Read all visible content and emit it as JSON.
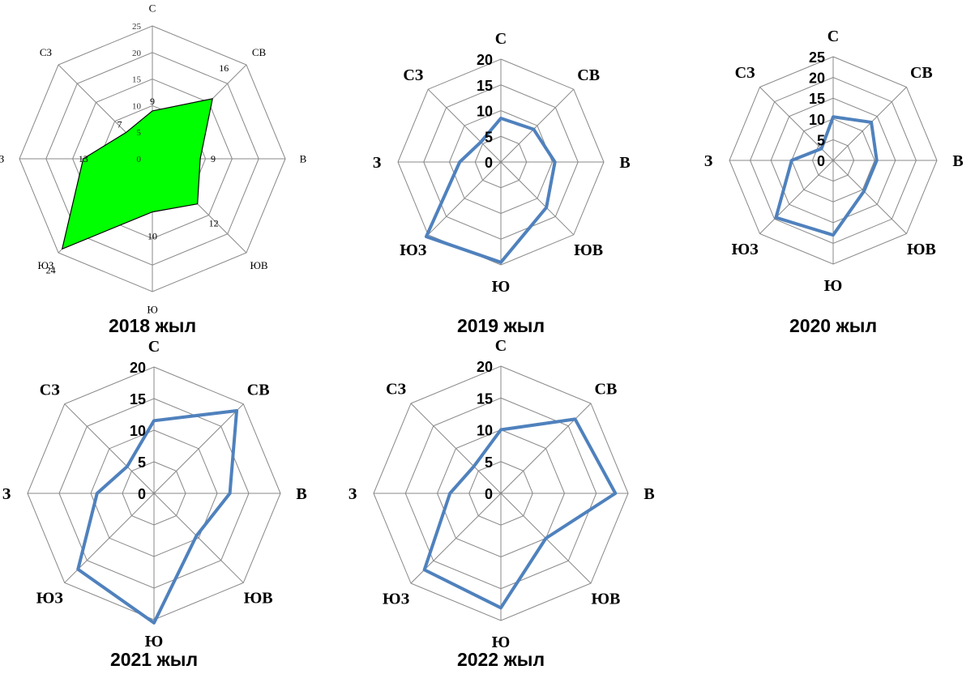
{
  "chart_data": [
    {
      "type": "radar",
      "caption": "2018 жыл",
      "directions": [
        "С",
        "СВ",
        "В",
        "ЮВ",
        "Ю",
        "ЮЗ",
        "З",
        "СЗ"
      ],
      "ticks": [
        "0",
        "5",
        "10",
        "15",
        "20",
        "25"
      ],
      "rmax": 25,
      "values": [
        9,
        16,
        9,
        12,
        10,
        24,
        13,
        7
      ],
      "value_labels": [
        "9",
        "16",
        "9",
        "12",
        "10",
        "24",
        "13",
        "7"
      ],
      "fill": "#00ff00",
      "stroke": "#000000"
    },
    {
      "type": "radar",
      "caption": "2019 жыл",
      "directions": [
        "С",
        "СВ",
        "В",
        "ЮВ",
        "Ю",
        "ЮЗ",
        "З",
        "СЗ"
      ],
      "ticks": [
        "0",
        "5",
        "10",
        "15",
        "20"
      ],
      "rmax": 20,
      "values": [
        8.5,
        9,
        10.5,
        12.5,
        19.5,
        20.5,
        8,
        5.5
      ],
      "stroke": "#4f81bd"
    },
    {
      "type": "radar",
      "caption": "2020 жыл",
      "directions": [
        "С",
        "СВ",
        "В",
        "ЮВ",
        "Ю",
        "ЮЗ",
        "З",
        "СЗ"
      ],
      "ticks": [
        "0",
        "5",
        "10",
        "15",
        "20",
        "25"
      ],
      "rmax": 25,
      "values": [
        10.5,
        13,
        10.5,
        10.5,
        18,
        19.5,
        10,
        4
      ],
      "stroke": "#4f81bd"
    },
    {
      "type": "radar",
      "caption": "2021 жыл",
      "directions": [
        "С",
        "СВ",
        "В",
        "ЮВ",
        "Ю",
        "ЮЗ",
        "З",
        "СЗ"
      ],
      "ticks": [
        "0",
        "5",
        "10",
        "15",
        "20"
      ],
      "rmax": 20,
      "values": [
        11.5,
        18.5,
        12,
        9.5,
        20.5,
        17,
        9,
        6
      ],
      "stroke": "#4f81bd"
    },
    {
      "type": "radar",
      "caption": "2022 жыл",
      "directions": [
        "С",
        "СВ",
        "В",
        "ЮВ",
        "Ю",
        "ЮЗ",
        "З",
        "СЗ"
      ],
      "ticks": [
        "0",
        "5",
        "10",
        "15",
        "20"
      ],
      "rmax": 20,
      "values": [
        10,
        16.5,
        18,
        10,
        18,
        17,
        8,
        6
      ],
      "stroke": "#4f81bd"
    }
  ]
}
